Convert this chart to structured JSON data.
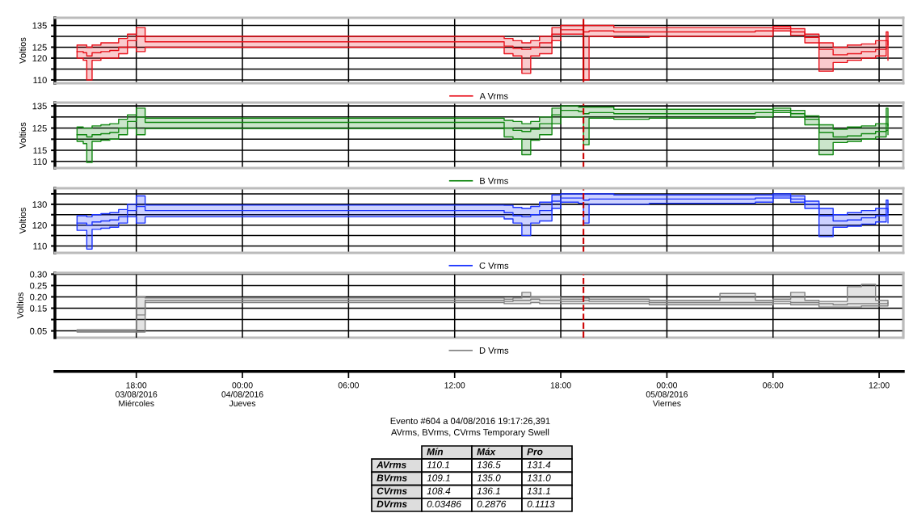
{
  "chart_data": [
    {
      "type": "step",
      "ylabel": "Voltios",
      "tick_labels": "y",
      "grid": true,
      "legend": "bottom",
      "x": [
        "2016-08-03T14:39",
        "2016-08-03T15:00",
        "2016-08-03T15:12",
        "2016-08-03T15:30",
        "2016-08-03T16:00",
        "2016-08-03T16:30",
        "2016-08-03T17:00",
        "2016-08-03T17:30",
        "2016-08-03T18:00",
        "2016-08-03T18:30",
        "2016-08-04T14:48",
        "2016-08-04T15:18",
        "2016-08-04T15:48",
        "2016-08-04T16:18",
        "2016-08-04T16:48",
        "2016-08-04T17:30",
        "2016-08-04T18:00",
        "2016-08-04T19:00",
        "2016-08-04T19:17",
        "2016-08-04T19:36",
        "2016-08-04T21:00",
        "2016-08-04T23:00",
        "2016-08-05T01:00",
        "2016-08-05T03:00",
        "2016-08-05T05:00",
        "2016-08-05T06:00",
        "2016-08-05T07:00",
        "2016-08-05T07:48",
        "2016-08-05T08:36",
        "2016-08-05T09:24",
        "2016-08-05T10:12",
        "2016-08-05T11:00",
        "2016-08-05T11:48",
        "2016-08-05T12:24",
        "2016-08-05T12:30"
      ],
      "xlim": [
        "2016-08-03T13:24",
        "2016-08-05T13:22"
      ],
      "xticks": [
        "2016-08-03T18:00",
        "2016-08-04T00:00",
        "2016-08-04T06:00",
        "2016-08-04T12:00",
        "2016-08-04T18:00",
        "2016-08-05T00:00",
        "2016-08-05T06:00",
        "2016-08-05T12:00"
      ],
      "ylim": [
        108.5,
        138.5
      ],
      "yticks": [
        110,
        {
          "value": 115,
          "label": null
        },
        120,
        125,
        {
          "value": 130,
          "label": null
        },
        135
      ],
      "ref_lines": [
        {
          "axis": "x",
          "value": "2016-08-04T19:17",
          "color": "#cc0000",
          "line_style": "solid"
        }
      ],
      "series": [
        {
          "name": "A Vrms",
          "color": "#e8101a",
          "values": [
            123,
            122.5,
            121,
            122.5,
            123,
            123.5,
            125,
            128,
            130,
            127.5,
            125.5,
            124.5,
            124,
            125,
            127,
            131,
            133,
            133,
            132,
            132.5,
            132,
            132,
            132,
            132,
            132.5,
            133.5,
            132,
            129.5,
            124,
            121.5,
            122,
            123,
            124,
            128,
            126
          ],
          "lower": [
            120,
            119,
            110,
            119,
            120,
            120,
            122,
            125,
            123,
            125,
            122,
            121,
            113,
            121,
            122,
            128,
            131,
            131,
            110,
            130,
            129.5,
            130,
            130,
            130,
            130,
            132.5,
            130.5,
            127,
            114,
            118,
            119,
            120,
            121,
            125,
            119
          ],
          "upper": [
            126,
            126,
            125,
            126,
            127,
            127,
            129,
            131,
            134,
            130,
            129,
            128,
            127,
            128,
            130,
            134,
            135,
            135,
            135,
            135,
            134,
            134,
            134,
            134,
            134,
            134.5,
            133.5,
            131,
            127,
            125,
            126,
            126.5,
            128,
            132,
            132
          ]
        }
      ]
    },
    {
      "type": "step",
      "ylabel": "Voltios",
      "tick_labels": "y",
      "grid": true,
      "legend": "bottom",
      "x": [
        "2016-08-03T14:39",
        "2016-08-03T15:00",
        "2016-08-03T15:12",
        "2016-08-03T15:30",
        "2016-08-03T16:00",
        "2016-08-03T16:30",
        "2016-08-03T17:00",
        "2016-08-03T17:30",
        "2016-08-03T18:00",
        "2016-08-03T18:30",
        "2016-08-04T14:48",
        "2016-08-04T15:18",
        "2016-08-04T15:48",
        "2016-08-04T16:18",
        "2016-08-04T16:48",
        "2016-08-04T17:30",
        "2016-08-04T18:00",
        "2016-08-04T19:00",
        "2016-08-04T19:17",
        "2016-08-04T19:36",
        "2016-08-04T21:00",
        "2016-08-04T23:00",
        "2016-08-05T01:00",
        "2016-08-05T03:00",
        "2016-08-05T05:00",
        "2016-08-05T06:00",
        "2016-08-05T07:00",
        "2016-08-05T07:48",
        "2016-08-05T08:36",
        "2016-08-05T09:24",
        "2016-08-05T10:12",
        "2016-08-05T11:00",
        "2016-08-05T11:48",
        "2016-08-05T12:24",
        "2016-08-05T12:30"
      ],
      "xlim": [
        "2016-08-03T13:24",
        "2016-08-05T13:22"
      ],
      "xticks": [
        "2016-08-03T18:00",
        "2016-08-04T00:00",
        "2016-08-04T06:00",
        "2016-08-04T12:00",
        "2016-08-04T18:00",
        "2016-08-05T00:00",
        "2016-08-05T06:00",
        "2016-08-05T12:00"
      ],
      "ylim": [
        107,
        136.5
      ],
      "yticks": [
        110,
        115,
        {
          "value": 120,
          "label": null
        },
        125,
        {
          "value": 130,
          "label": null
        },
        135
      ],
      "ref_lines": [
        {
          "axis": "x",
          "value": "2016-08-04T19:17",
          "color": "#cc0000",
          "line_style": "dashed"
        }
      ],
      "series": [
        {
          "name": "B Vrms",
          "color": "#118811",
          "values": [
            122,
            122,
            121,
            122,
            122.5,
            123,
            125,
            128,
            130,
            127.6,
            125,
            124,
            123.5,
            124.5,
            127,
            131,
            133,
            132.5,
            131.5,
            132,
            131.5,
            131.5,
            131.5,
            131.5,
            132,
            133,
            131.5,
            129,
            123,
            121,
            121.5,
            122.5,
            123.5,
            127,
            126
          ],
          "lower": [
            119,
            118,
            109.5,
            119,
            119.5,
            120,
            122,
            125,
            122,
            124.8,
            121,
            120,
            113,
            119.5,
            122,
            127,
            130,
            130,
            117.5,
            129.5,
            129,
            129.5,
            129.5,
            129.5,
            130,
            132,
            130,
            126.5,
            113,
            118.5,
            119,
            120,
            121,
            124,
            122
          ],
          "upper": [
            125.5,
            125,
            125,
            126,
            126.5,
            127,
            129,
            131,
            134,
            129.5,
            128.5,
            128,
            127,
            128,
            130,
            134,
            135,
            134.5,
            134.5,
            134.5,
            133.5,
            133.5,
            133.5,
            133.5,
            133.5,
            134,
            133,
            130.5,
            126.5,
            124.5,
            125.5,
            126,
            127,
            134,
            131
          ]
        }
      ]
    },
    {
      "type": "step",
      "ylabel": "Voltios",
      "tick_labels": "y",
      "grid": true,
      "legend": "bottom",
      "x": [
        "2016-08-03T14:39",
        "2016-08-03T15:00",
        "2016-08-03T15:12",
        "2016-08-03T15:30",
        "2016-08-03T16:00",
        "2016-08-03T16:30",
        "2016-08-03T17:00",
        "2016-08-03T17:30",
        "2016-08-03T18:00",
        "2016-08-03T18:30",
        "2016-08-04T14:48",
        "2016-08-04T15:18",
        "2016-08-04T15:48",
        "2016-08-04T16:18",
        "2016-08-04T16:48",
        "2016-08-04T17:30",
        "2016-08-04T18:00",
        "2016-08-04T19:00",
        "2016-08-04T19:17",
        "2016-08-04T19:36",
        "2016-08-04T21:00",
        "2016-08-04T23:00",
        "2016-08-05T01:00",
        "2016-08-05T03:00",
        "2016-08-05T05:00",
        "2016-08-05T06:00",
        "2016-08-05T07:00",
        "2016-08-05T07:48",
        "2016-08-05T08:36",
        "2016-08-05T09:24",
        "2016-08-05T10:12",
        "2016-08-05T11:00",
        "2016-08-05T11:48",
        "2016-08-05T12:24",
        "2016-08-05T12:30"
      ],
      "xlim": [
        "2016-08-03T13:24",
        "2016-08-05T13:22"
      ],
      "xticks": [
        "2016-08-03T18:00",
        "2016-08-04T00:00",
        "2016-08-04T06:00",
        "2016-08-04T12:00",
        "2016-08-04T18:00",
        "2016-08-05T00:00",
        "2016-08-05T06:00",
        "2016-08-05T12:00"
      ],
      "ylim": [
        106.7,
        137.7
      ],
      "yticks": [
        110,
        {
          "value": 115,
          "label": null
        },
        120,
        {
          "value": 125,
          "label": null
        },
        130,
        {
          "value": 135,
          "label": null
        }
      ],
      "ref_lines": [
        {
          "axis": "x",
          "value": "2016-08-04T19:17",
          "color": "#cc0000",
          "line_style": "dashed"
        }
      ],
      "series": [
        {
          "name": "C Vrms",
          "color": "#1a33ff",
          "values": [
            121,
            121,
            120,
            121.5,
            122,
            122.5,
            124,
            127,
            129,
            127,
            126,
            124.5,
            124,
            125,
            127,
            131.5,
            133,
            133,
            132,
            132.5,
            132.5,
            132.5,
            132.5,
            132.5,
            133,
            134,
            132.5,
            130,
            124.5,
            122,
            122.5,
            123.5,
            124.5,
            128,
            126
          ],
          "lower": [
            117.5,
            117.5,
            108.5,
            118,
            118.5,
            119,
            121,
            124,
            121,
            124,
            123,
            121,
            115,
            121,
            122,
            128,
            131,
            130.5,
            121,
            130,
            130,
            130.5,
            130.5,
            130.5,
            131,
            133,
            131,
            128,
            114.5,
            119,
            119.5,
            120.5,
            121.5,
            125,
            121
          ],
          "upper": [
            124.5,
            124.5,
            124,
            125,
            125.5,
            126,
            127.5,
            130,
            134,
            129.6,
            129.5,
            128.5,
            128,
            129,
            131,
            134.5,
            135,
            135,
            135,
            135,
            134.5,
            134.5,
            134.5,
            134.5,
            134.5,
            135,
            134,
            131.5,
            128,
            125,
            126,
            127,
            128,
            132,
            130
          ]
        }
      ]
    },
    {
      "type": "step",
      "ylabel": "Voltios",
      "grid": true,
      "legend": "bottom",
      "x": [
        "2016-08-03T14:39",
        "2016-08-03T15:00",
        "2016-08-03T15:12",
        "2016-08-03T15:30",
        "2016-08-03T16:00",
        "2016-08-03T16:30",
        "2016-08-03T17:00",
        "2016-08-03T17:30",
        "2016-08-03T18:00",
        "2016-08-03T18:30",
        "2016-08-04T14:48",
        "2016-08-04T15:18",
        "2016-08-04T15:48",
        "2016-08-04T16:18",
        "2016-08-04T16:48",
        "2016-08-04T17:30",
        "2016-08-04T18:00",
        "2016-08-04T19:00",
        "2016-08-04T19:17",
        "2016-08-04T19:36",
        "2016-08-04T21:00",
        "2016-08-04T23:00",
        "2016-08-05T01:00",
        "2016-08-05T03:00",
        "2016-08-05T05:00",
        "2016-08-05T06:00",
        "2016-08-05T07:00",
        "2016-08-05T07:48",
        "2016-08-05T08:36",
        "2016-08-05T09:24",
        "2016-08-05T10:12",
        "2016-08-05T11:00",
        "2016-08-05T11:48",
        "2016-08-05T12:24",
        "2016-08-05T12:30"
      ],
      "xlim": [
        "2016-08-03T13:24",
        "2016-08-05T13:22"
      ],
      "xticks": [
        {
          "value": "2016-08-03T18:00",
          "label": "18:00\n03/08/2016\nMiércoles"
        },
        {
          "value": "2016-08-04T00:00",
          "label": "00:00\n04/08/2016\nJueves"
        },
        {
          "value": "2016-08-04T06:00",
          "label": "06:00"
        },
        {
          "value": "2016-08-04T12:00",
          "label": "12:00"
        },
        {
          "value": "2016-08-04T18:00",
          "label": "18:00"
        },
        {
          "value": "2016-08-05T00:00",
          "label": "00:00\n05/08/2016\nViernes"
        },
        {
          "value": "2016-08-05T06:00",
          "label": "06:00"
        },
        {
          "value": "2016-08-05T12:00",
          "label": "12:00"
        }
      ],
      "ylim": [
        0.02,
        0.305
      ],
      "yticks": [
        {
          "value": 0.05,
          "label": "0.05"
        },
        {
          "value": 0.1,
          "label": null
        },
        {
          "value": 0.15,
          "label": "0.15"
        },
        {
          "value": 0.2,
          "label": "0.20"
        },
        {
          "value": 0.25,
          "label": "0.25"
        },
        {
          "value": 0.3,
          "label": "0.30"
        }
      ],
      "ref_lines": [
        {
          "axis": "x",
          "value": "2016-08-04T19:17",
          "color": "#cc0000",
          "line_style": "dashed"
        }
      ],
      "series": [
        {
          "name": "D Vrms",
          "color": "#808080",
          "values": [
            0.05,
            0.05,
            0.05,
            0.05,
            0.05,
            0.05,
            0.05,
            0.05,
            0.12,
            0.185,
            0.18,
            0.185,
            0.185,
            0.19,
            0.185,
            0.185,
            0.18,
            0.18,
            0.185,
            0.18,
            0.18,
            0.175,
            0.175,
            0.175,
            0.175,
            0.18,
            0.175,
            0.175,
            0.17,
            0.165,
            0.17,
            0.17,
            0.17,
            0.17,
            0.175
          ],
          "lower": [
            0.045,
            0.045,
            0.045,
            0.045,
            0.045,
            0.045,
            0.045,
            0.045,
            0.045,
            0.175,
            0.17,
            0.17,
            0.17,
            0.175,
            0.17,
            0.17,
            0.17,
            0.17,
            0.17,
            0.17,
            0.17,
            0.165,
            0.165,
            0.165,
            0.165,
            0.17,
            0.165,
            0.165,
            0.155,
            0.155,
            0.155,
            0.16,
            0.16,
            0.16,
            0.165
          ],
          "upper": [
            0.055,
            0.055,
            0.055,
            0.055,
            0.055,
            0.055,
            0.055,
            0.055,
            0.2,
            0.195,
            0.19,
            0.195,
            0.22,
            0.2,
            0.2,
            0.2,
            0.19,
            0.19,
            0.195,
            0.19,
            0.19,
            0.185,
            0.185,
            0.215,
            0.185,
            0.19,
            0.22,
            0.185,
            0.18,
            0.18,
            0.245,
            0.255,
            0.185,
            0.185,
            0.185
          ]
        }
      ],
      "annotations": [
        "Evento #604 a 04/08/2016 19:17:26,391",
        "AVrms, BVrms, CVrms Temporary Swell",
        "\tMín\tMáx\tPro",
        "AVrms\t110.1\t136.5\t131.4",
        "BVrms\t109.1\t135.0\t131.0",
        "CVrms\t108.4\t136.1\t131.1",
        "DVrms\t0.03486\t0.2876\t0.1113"
      ]
    }
  ]
}
